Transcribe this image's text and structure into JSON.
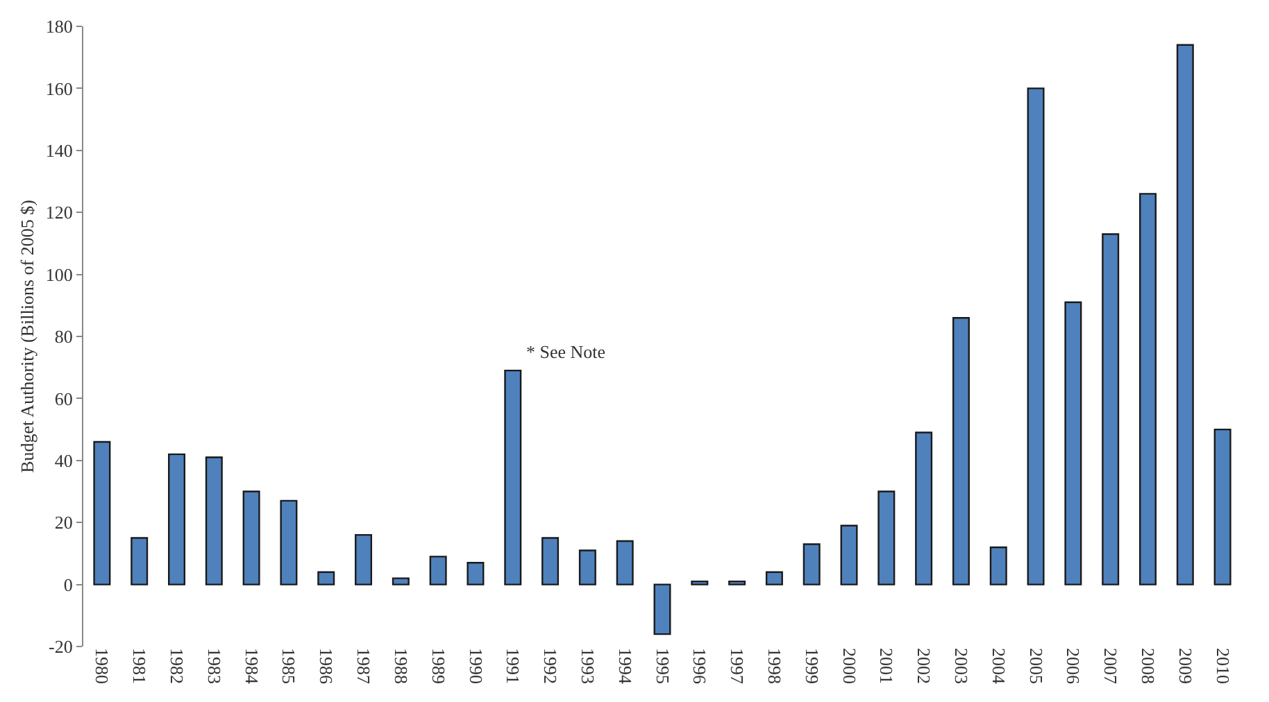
{
  "chart_data": {
    "type": "bar",
    "ylabel": "Budget Authority (Billions of 2005 $)",
    "categories": [
      "1980",
      "1981",
      "1982",
      "1983",
      "1984",
      "1985",
      "1986",
      "1987",
      "1988",
      "1989",
      "1990",
      "1991",
      "1992",
      "1993",
      "1994",
      "1995",
      "1996",
      "1997",
      "1998",
      "1999",
      "2000",
      "2001",
      "2002",
      "2003",
      "2004",
      "2005",
      "2006",
      "2007",
      "2008",
      "2009",
      "2010"
    ],
    "values": [
      46,
      15,
      42,
      41,
      30,
      27,
      4,
      16,
      2,
      9,
      7,
      69,
      15,
      11,
      14,
      -16,
      1,
      1,
      4,
      13,
      19,
      30,
      49,
      86,
      12,
      160,
      91,
      113,
      126,
      174,
      50
    ],
    "color": "#4f81bd",
    "ylim": [
      -20,
      180
    ],
    "yticks": [
      -20,
      0,
      20,
      40,
      60,
      80,
      100,
      120,
      140,
      160,
      180
    ],
    "grid": false,
    "legend": false,
    "annotations": [
      {
        "text": "* See Note",
        "x": "1991",
        "y": 69
      }
    ]
  }
}
